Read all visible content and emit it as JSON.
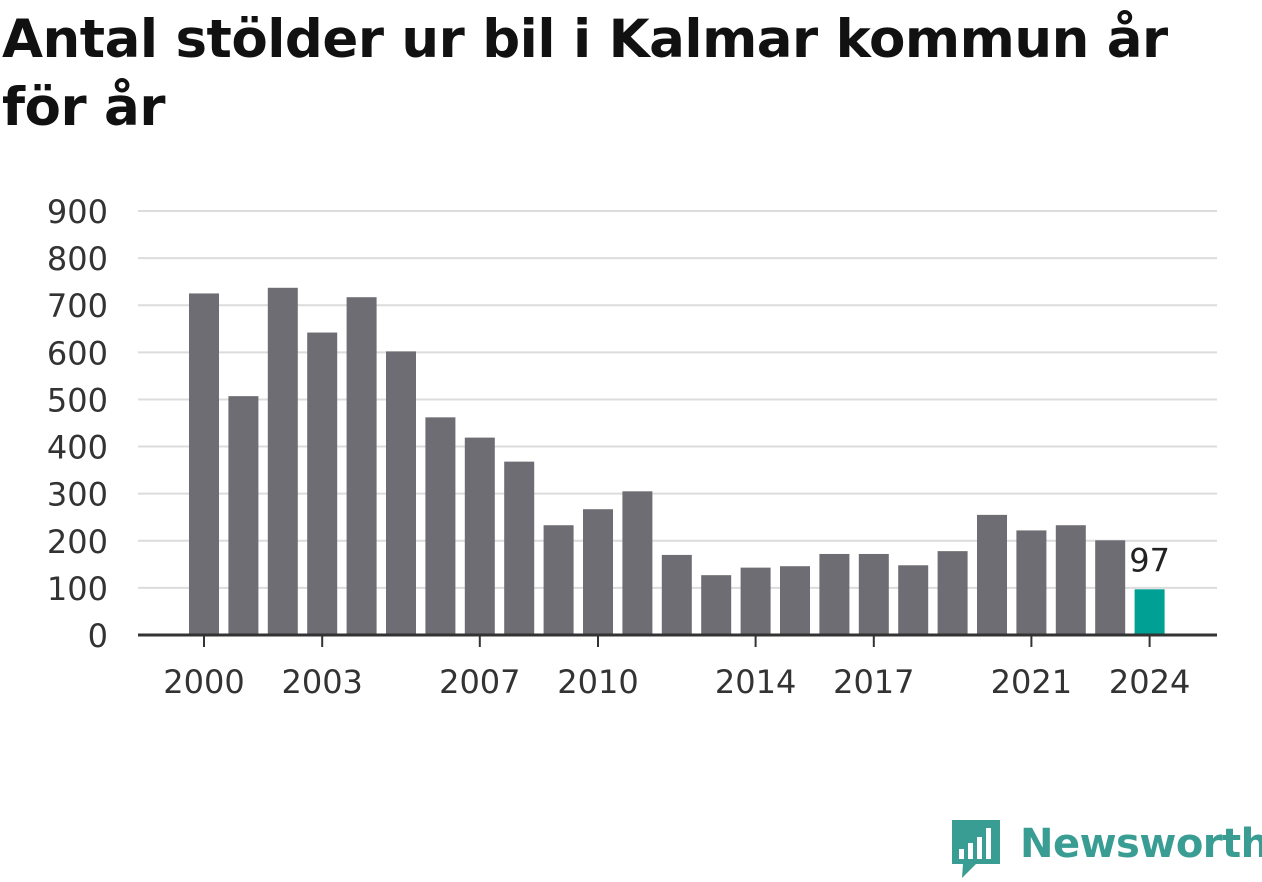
{
  "chart_data": {
    "type": "bar",
    "title": "Antal stölder ur bil i Kalmar kommun år för år",
    "x": [
      2000,
      2001,
      2002,
      2003,
      2004,
      2005,
      2006,
      2007,
      2008,
      2009,
      2010,
      2011,
      2012,
      2013,
      2014,
      2015,
      2016,
      2017,
      2018,
      2019,
      2020,
      2021,
      2022,
      2023,
      2024
    ],
    "values": [
      725,
      507,
      737,
      642,
      717,
      602,
      462,
      419,
      368,
      233,
      267,
      305,
      170,
      127,
      143,
      146,
      172,
      172,
      148,
      178,
      255,
      222,
      233,
      201,
      97
    ],
    "x_tick_labels": [
      "2000",
      "2003",
      "2007",
      "2010",
      "2014",
      "2017",
      "2021",
      "2024"
    ],
    "y_tick_labels": [
      "0",
      "100",
      "200",
      "300",
      "400",
      "500",
      "600",
      "700",
      "800",
      "900"
    ],
    "ylim": [
      0,
      900
    ],
    "xlabel": "",
    "ylabel": "",
    "annotation": {
      "year": 2024,
      "text": "97"
    },
    "grid": true,
    "colors": {
      "bar": "#6e6d73",
      "highlight": "#00a095",
      "grid": "#dcdcdc",
      "axis": "#333333",
      "text": "#333333"
    }
  },
  "brand": {
    "name": "Newsworthy",
    "icon": "newsworthy-logo-icon",
    "color": "#3a9d93"
  }
}
